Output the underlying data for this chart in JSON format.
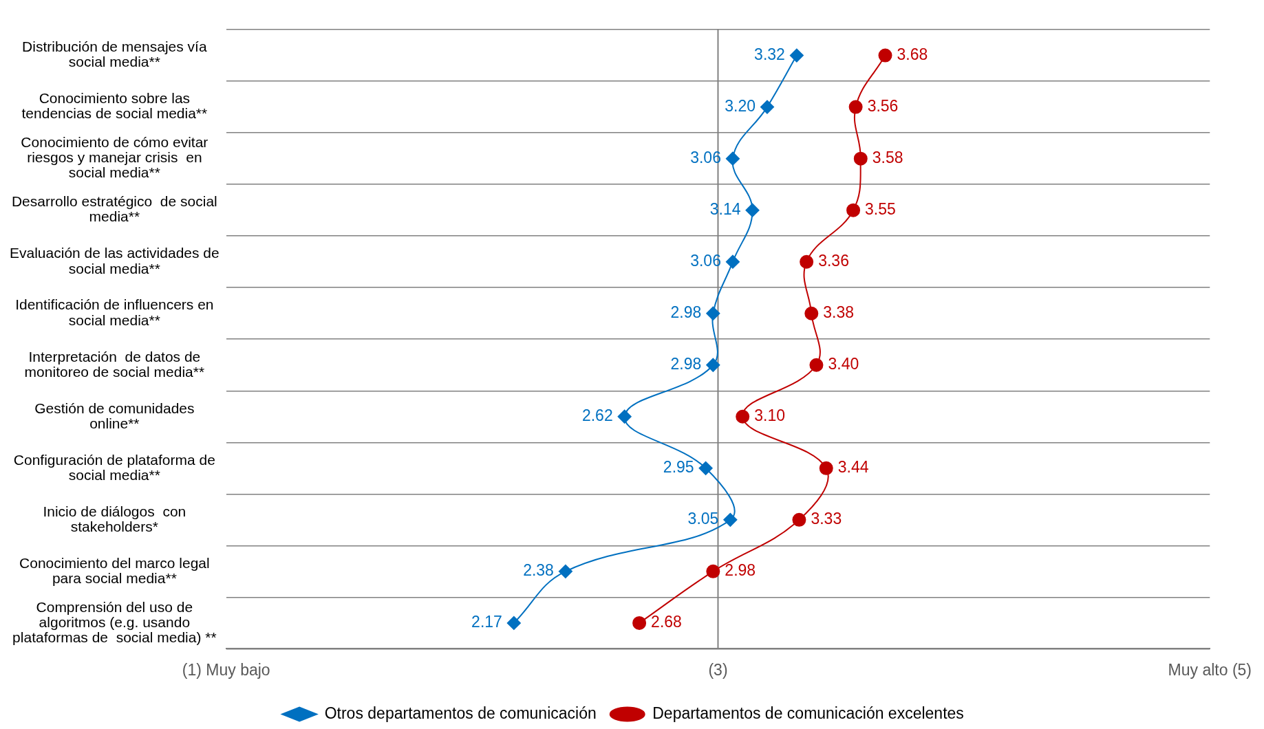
{
  "chart_data": {
    "type": "line",
    "orientation": "horizontal",
    "categories": [
      "Distribución de mensajes vía social media**",
      "Conocimiento sobre las tendencias de social media**",
      "Conocimiento de cómo evitar riesgos y manejar crisis  en social media**",
      "Desarrollo estratégico  de social media**",
      "Evaluación de las actividades de social media**",
      "Identificación de influencers en social media**",
      "Interpretación  de datos de monitoreo de social media**",
      "Gestión de comunidades online**",
      "Configuración de plataforma de social media**",
      "Inicio de diálogos  con stakeholders*",
      "Conocimiento del marco legal para social media**",
      "Comprensión del uso de algoritmos (e.g. usando plataformas de  social media) **"
    ],
    "series": [
      {
        "name": "Otros departamentos de comunicación",
        "color": "#0070c0",
        "marker": "diamond",
        "values": [
          3.32,
          3.2,
          3.06,
          3.14,
          3.06,
          2.98,
          2.98,
          2.62,
          2.95,
          3.05,
          2.38,
          2.17
        ],
        "value_labels": [
          "3.32",
          "3.20",
          "3.06",
          "3.14",
          "3.06",
          "2.98",
          "2.98",
          "2.62",
          "2.95",
          "3.05",
          "2.38",
          "2.17"
        ]
      },
      {
        "name": "Departamentos de comunicación excelentes",
        "color": "#c00000",
        "marker": "circle",
        "values": [
          3.68,
          3.56,
          3.58,
          3.55,
          3.36,
          3.38,
          3.4,
          3.1,
          3.44,
          3.33,
          2.98,
          2.68
        ],
        "value_labels": [
          "3.68",
          "3.56",
          "3.58",
          "3.55",
          "3.36",
          "3.38",
          "3.40",
          "3.10",
          "3.44",
          "3.33",
          "2.98",
          "2.68"
        ]
      }
    ],
    "xlim": [
      1,
      5
    ],
    "xticks": [
      {
        "value": 1,
        "label": "(1) Muy bajo"
      },
      {
        "value": 3,
        "label": "(3)"
      },
      {
        "value": 5,
        "label": "Muy alto (5)"
      }
    ],
    "ref_lines": [
      {
        "axis": "x",
        "value": 3,
        "color": "#808080"
      }
    ],
    "grid": "y",
    "legend": "bottom"
  }
}
